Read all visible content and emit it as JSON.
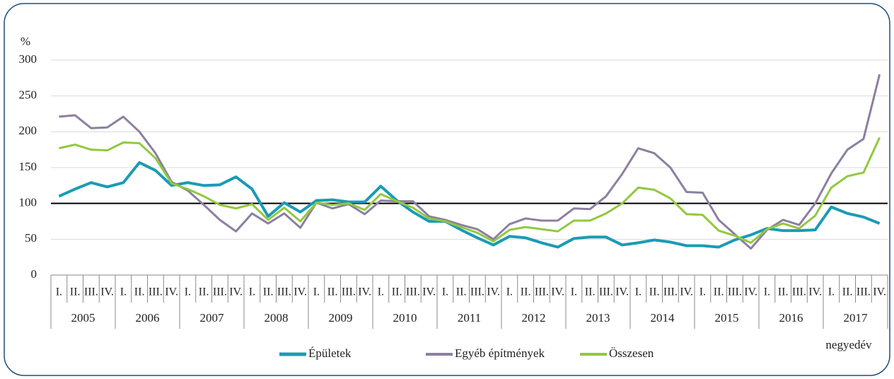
{
  "chart_data": {
    "type": "line",
    "y_unit": "%",
    "x_label": "negyedév",
    "categories": [
      "I.",
      "II.",
      "III.",
      "IV.",
      "I.",
      "II.",
      "III.",
      "IV.",
      "I.",
      "II.",
      "III.",
      "IV.",
      "I.",
      "II.",
      "III.",
      "IV.",
      "I.",
      "II.",
      "III.",
      "IV.",
      "I.",
      "II.",
      "III.",
      "IV.",
      "I.",
      "II.",
      "III.",
      "IV.",
      "I.",
      "II.",
      "III.",
      "IV.",
      "I.",
      "II.",
      "III.",
      "IV.",
      "I.",
      "II.",
      "III.",
      "IV.",
      "I.",
      "II.",
      "III.",
      "IV.",
      "I.",
      "II.",
      "III.",
      "IV.",
      "I.",
      "II.",
      "III.",
      "IV."
    ],
    "years": [
      "2005",
      "2006",
      "2007",
      "2008",
      "2009",
      "2010",
      "2011",
      "2012",
      "2013",
      "2014",
      "2015",
      "2016",
      "2017"
    ],
    "series": [
      {
        "name": "Épületek",
        "color": "#1a9bb5",
        "width": 4,
        "values": [
          110,
          120,
          129,
          123,
          129,
          157,
          146,
          125,
          129,
          125,
          126,
          137,
          120,
          82,
          101,
          88,
          104,
          105,
          102,
          102,
          124,
          104,
          88,
          75,
          75,
          63,
          52,
          42,
          54,
          52,
          45,
          39,
          51,
          53,
          53,
          42,
          45,
          49,
          46,
          41,
          41,
          39,
          49,
          56,
          65,
          62,
          62,
          63,
          95,
          86,
          81,
          72
        ]
      },
      {
        "name": "Egyéb építmények",
        "color": "#8c7fa0",
        "width": 3,
        "values": [
          221,
          223,
          205,
          206,
          221,
          200,
          170,
          130,
          118,
          98,
          77,
          61,
          86,
          72,
          86,
          66,
          101,
          93,
          99,
          85,
          104,
          103,
          103,
          82,
          77,
          70,
          64,
          50,
          71,
          79,
          76,
          76,
          93,
          92,
          110,
          141,
          177,
          170,
          150,
          116,
          115,
          77,
          57,
          37,
          63,
          77,
          70,
          100,
          142,
          175,
          190,
          280
        ]
      },
      {
        "name": "Összesen",
        "color": "#92c83e",
        "width": 3,
        "values": [
          177,
          182,
          175,
          174,
          185,
          184,
          163,
          128,
          120,
          110,
          98,
          93,
          99,
          77,
          94,
          75,
          101,
          98,
          100,
          91,
          113,
          103,
          94,
          79,
          75,
          67,
          59,
          47,
          63,
          67,
          64,
          61,
          76,
          76,
          86,
          100,
          122,
          119,
          107,
          85,
          84,
          62,
          55,
          45,
          64,
          72,
          65,
          83,
          122,
          138,
          143,
          192
        ]
      }
    ],
    "reference_line": 100,
    "ylim": [
      0,
      300
    ],
    "yticks": [
      0,
      50,
      100,
      150,
      200,
      250,
      300
    ],
    "grid": true
  }
}
